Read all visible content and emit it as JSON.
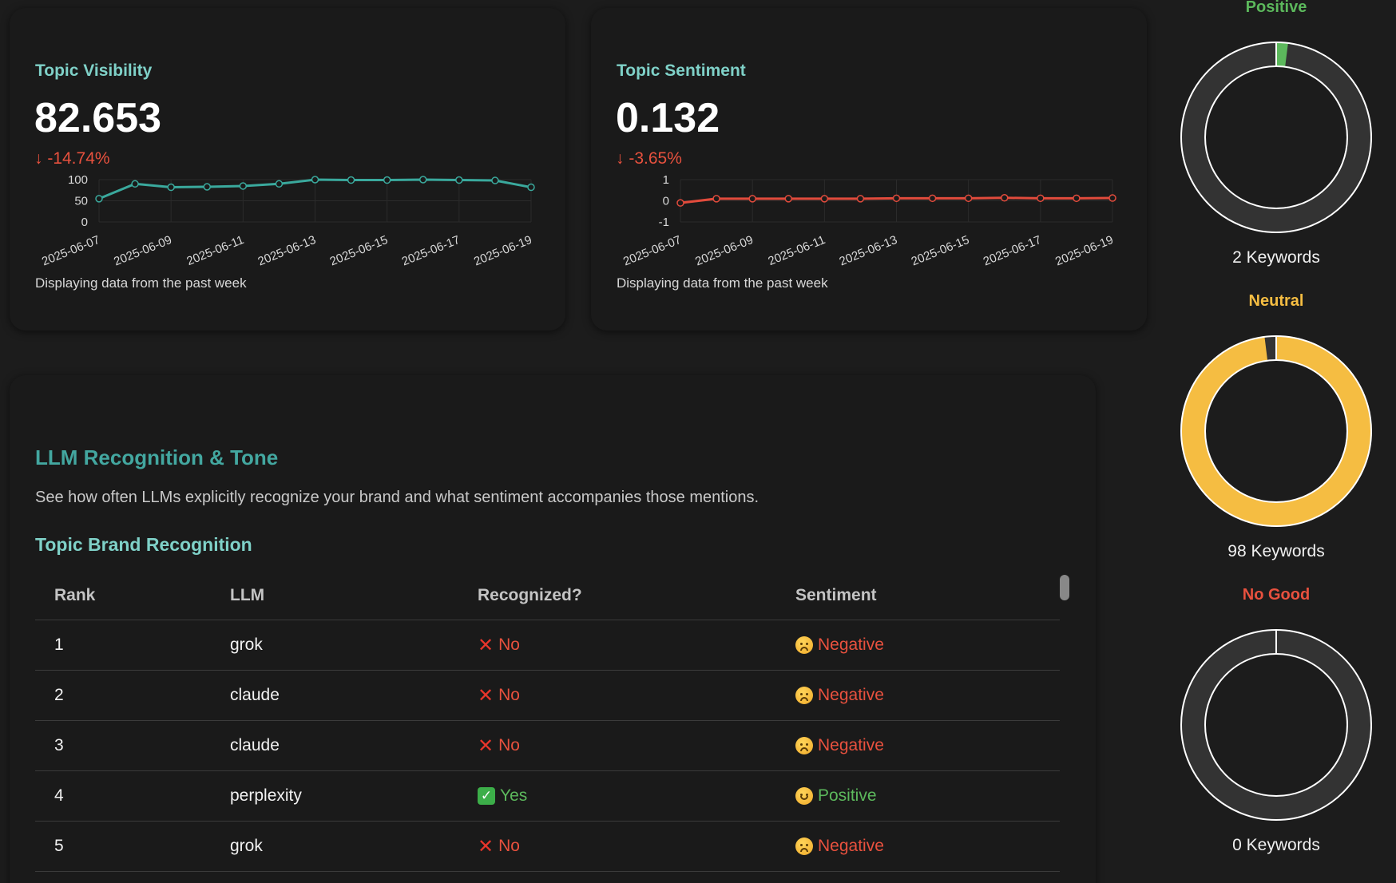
{
  "visibility": {
    "title": "Topic Visibility",
    "value": "82.653",
    "delta": "↓ -14.74%",
    "footer": "Displaying data from the past week",
    "line_color": "#3aa99d",
    "chart_data": {
      "type": "line",
      "x": [
        "2025-06-07",
        "2025-06-08",
        "2025-06-09",
        "2025-06-10",
        "2025-06-11",
        "2025-06-12",
        "2025-06-13",
        "2025-06-14",
        "2025-06-15",
        "2025-06-16",
        "2025-06-17",
        "2025-06-18",
        "2025-06-19"
      ],
      "x_tick_labels": [
        "2025-06-07",
        "2025-06-09",
        "2025-06-11",
        "2025-06-13",
        "2025-06-15",
        "2025-06-17",
        "2025-06-19"
      ],
      "y_tick_labels": [
        "100",
        "50",
        "0"
      ],
      "values": [
        55,
        90,
        82,
        83,
        85,
        90,
        100,
        99,
        99,
        100,
        99,
        98,
        82
      ],
      "ylim": [
        0,
        100
      ]
    }
  },
  "sentiment": {
    "title": "Topic Sentiment",
    "value": "0.132",
    "delta": "↓ -3.65%",
    "footer": "Displaying data from the past week",
    "line_color": "#e24b3c",
    "chart_data": {
      "type": "line",
      "x": [
        "2025-06-07",
        "2025-06-08",
        "2025-06-09",
        "2025-06-10",
        "2025-06-11",
        "2025-06-12",
        "2025-06-13",
        "2025-06-14",
        "2025-06-15",
        "2025-06-16",
        "2025-06-17",
        "2025-06-18",
        "2025-06-19"
      ],
      "x_tick_labels": [
        "2025-06-07",
        "2025-06-09",
        "2025-06-11",
        "2025-06-13",
        "2025-06-15",
        "2025-06-17",
        "2025-06-19"
      ],
      "y_tick_labels": [
        "1",
        "0",
        "-1"
      ],
      "values": [
        -0.1,
        0.1,
        0.1,
        0.1,
        0.1,
        0.1,
        0.12,
        0.12,
        0.12,
        0.14,
        0.12,
        0.12,
        0.13
      ],
      "ylim": [
        -1,
        1
      ]
    }
  },
  "llm": {
    "title": "LLM Recognition & Tone",
    "description": "See how often LLMs explicitly recognize your brand and what sentiment accompanies those mentions.",
    "table_title": "Topic Brand Recognition",
    "columns": {
      "rank": "Rank",
      "llm": "LLM",
      "recognized": "Recognized?",
      "sentiment": "Sentiment"
    },
    "rows": [
      {
        "rank": "1",
        "llm": "grok",
        "recognized": "No",
        "sentiment": "Negative"
      },
      {
        "rank": "2",
        "llm": "claude",
        "recognized": "No",
        "sentiment": "Negative"
      },
      {
        "rank": "3",
        "llm": "claude",
        "recognized": "No",
        "sentiment": "Negative"
      },
      {
        "rank": "4",
        "llm": "perplexity",
        "recognized": "Yes",
        "sentiment": "Positive"
      },
      {
        "rank": "5",
        "llm": "grok",
        "recognized": "No",
        "sentiment": "Negative"
      }
    ]
  },
  "donuts": [
    {
      "label": "Positive",
      "count": "2 Keywords",
      "fraction": 0.02,
      "color": "#5cb85c"
    },
    {
      "label": "Neutral",
      "count": "98 Keywords",
      "fraction": 0.98,
      "color": "#f5bd42"
    },
    {
      "label": "No Good",
      "count": "0 Keywords",
      "fraction": 0.0,
      "color": "#e8513e"
    }
  ]
}
